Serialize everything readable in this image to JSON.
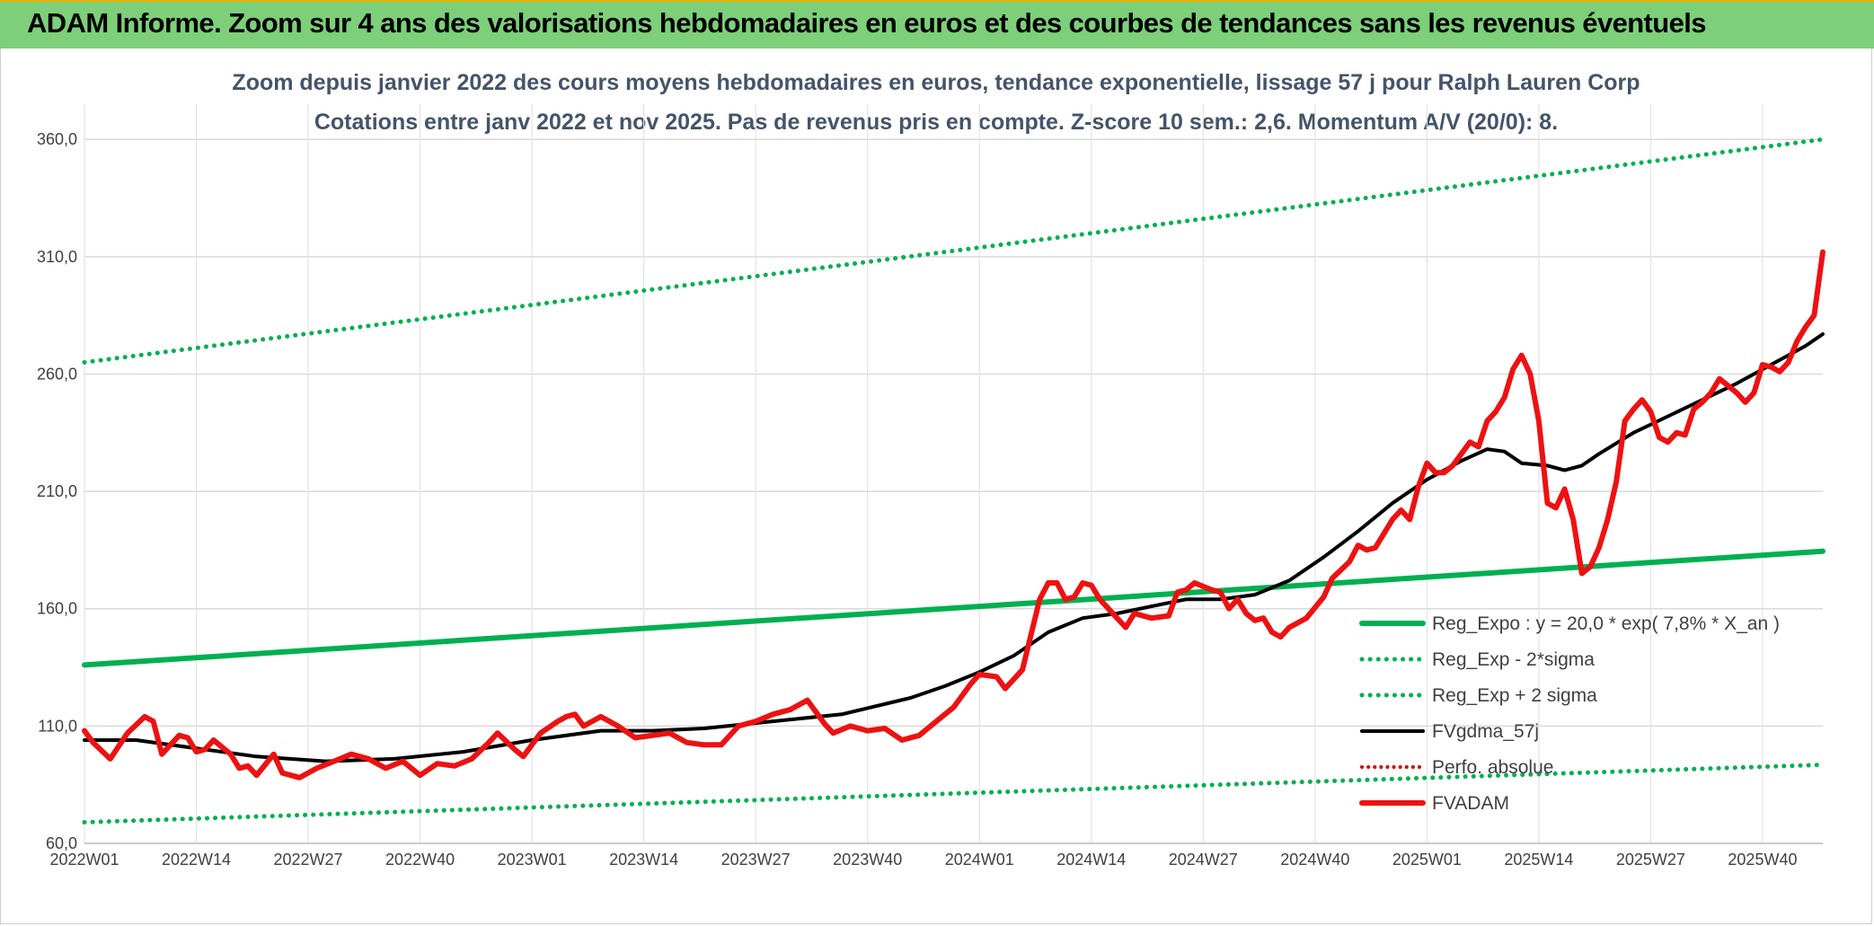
{
  "banner": {
    "title": "ADAM Informe. Zoom sur 4 ans des valorisations hebdomadaires en euros et des courbes de tendances sans les revenus éventuels"
  },
  "chart_data": {
    "type": "line",
    "title": "Zoom depuis janvier 2022 des cours moyens hebdomadaires en euros, tendance exponentielle, lissage 57 j pour Ralph Lauren Corp",
    "subtitle": "Cotations entre janv 2022 et nov 2025. Pas de revenus pris en compte. Z-score 10 sem.: 2,6. Momentum A/V (20/0): 8.",
    "xlabel": "",
    "ylabel": "",
    "ylim": [
      60,
      375
    ],
    "grid": true,
    "legend_position": "right",
    "x_count": 203,
    "y_tick_labels": [
      "60,0",
      "110,0",
      "160,0",
      "210,0",
      "260,0",
      "310,0",
      "360,0"
    ],
    "y_tick_values": [
      60,
      110,
      160,
      210,
      260,
      310,
      360
    ],
    "x_tick_labels": [
      "2022W01",
      "2022W14",
      "2022W27",
      "2022W40",
      "2023W01",
      "2023W14",
      "2023W27",
      "2023W40",
      "2024W01",
      "2024W14",
      "2024W27",
      "2024W40",
      "2025W01",
      "2025W14",
      "2025W27",
      "2025W40"
    ],
    "x_tick_indices": [
      0,
      13,
      26,
      39,
      52,
      65,
      78,
      91,
      104,
      117,
      130,
      143,
      156,
      169,
      182,
      195
    ],
    "colors": {
      "reg_expo": "#00b050",
      "sigma_bands": "#00b050",
      "smooth": "#000000",
      "perfo": "#e00000",
      "fvadam": "#ee1111"
    },
    "series": [
      {
        "name": "Reg_Expo : y = 20,0 * exp( 7,8% *  X_an )",
        "style": "solid-thick",
        "keypoints": [
          [
            0,
            136
          ],
          [
            202,
            184.5
          ]
        ]
      },
      {
        "name": "Reg_Exp - 2*sigma",
        "style": "dotted",
        "keypoints": [
          [
            0,
            69
          ],
          [
            202,
            93.5
          ]
        ]
      },
      {
        "name": "Reg_Exp + 2 sigma",
        "style": "dotted",
        "keypoints": [
          [
            0,
            265
          ],
          [
            202,
            360
          ]
        ]
      },
      {
        "name": "FVgdma_57j",
        "style": "solid",
        "keypoints": [
          [
            0,
            104
          ],
          [
            6,
            104
          ],
          [
            12,
            101
          ],
          [
            20,
            97
          ],
          [
            28,
            95
          ],
          [
            36,
            96
          ],
          [
            44,
            99
          ],
          [
            52,
            104
          ],
          [
            60,
            108
          ],
          [
            66,
            108
          ],
          [
            72,
            109
          ],
          [
            80,
            112
          ],
          [
            88,
            115
          ],
          [
            96,
            122
          ],
          [
            100,
            127
          ],
          [
            104,
            133
          ],
          [
            108,
            140
          ],
          [
            112,
            150
          ],
          [
            116,
            156
          ],
          [
            120,
            158
          ],
          [
            124,
            161
          ],
          [
            128,
            164
          ],
          [
            132,
            164
          ],
          [
            136,
            166
          ],
          [
            140,
            172
          ],
          [
            144,
            182
          ],
          [
            148,
            193
          ],
          [
            152,
            205
          ],
          [
            156,
            215
          ],
          [
            160,
            223
          ],
          [
            163,
            228
          ],
          [
            165,
            227
          ],
          [
            167,
            222
          ],
          [
            170,
            221
          ],
          [
            172,
            219
          ],
          [
            174,
            221
          ],
          [
            176,
            226
          ],
          [
            180,
            235
          ],
          [
            184,
            242
          ],
          [
            188,
            249
          ],
          [
            192,
            256
          ],
          [
            196,
            264
          ],
          [
            200,
            272
          ],
          [
            202,
            277
          ]
        ]
      },
      {
        "name": "Perfo. absolue",
        "style": "dotted",
        "keypoints": []
      },
      {
        "name": "FVADAM",
        "style": "solid-thick",
        "keypoints": [
          [
            0,
            108
          ],
          [
            1,
            103
          ],
          [
            3,
            96
          ],
          [
            5,
            107
          ],
          [
            7,
            114
          ],
          [
            8,
            112
          ],
          [
            9,
            98
          ],
          [
            11,
            106
          ],
          [
            12,
            105
          ],
          [
            13,
            99
          ],
          [
            14,
            100
          ],
          [
            15,
            104
          ],
          [
            17,
            98
          ],
          [
            18,
            92
          ],
          [
            19,
            93
          ],
          [
            20,
            89
          ],
          [
            22,
            98
          ],
          [
            23,
            90
          ],
          [
            25,
            88
          ],
          [
            27,
            92
          ],
          [
            29,
            95
          ],
          [
            31,
            98
          ],
          [
            33,
            96
          ],
          [
            35,
            92
          ],
          [
            37,
            95
          ],
          [
            39,
            89
          ],
          [
            41,
            94
          ],
          [
            43,
            93
          ],
          [
            45,
            96
          ],
          [
            47,
            103
          ],
          [
            48,
            107
          ],
          [
            50,
            100
          ],
          [
            51,
            97
          ],
          [
            53,
            107
          ],
          [
            55,
            112
          ],
          [
            56,
            114
          ],
          [
            57,
            115
          ],
          [
            58,
            110
          ],
          [
            60,
            114
          ],
          [
            62,
            110
          ],
          [
            64,
            105
          ],
          [
            66,
            106
          ],
          [
            68,
            107
          ],
          [
            70,
            103
          ],
          [
            72,
            102
          ],
          [
            74,
            102
          ],
          [
            76,
            110
          ],
          [
            78,
            112
          ],
          [
            80,
            115
          ],
          [
            82,
            117
          ],
          [
            84,
            121
          ],
          [
            86,
            111
          ],
          [
            87,
            107
          ],
          [
            89,
            110
          ],
          [
            91,
            108
          ],
          [
            93,
            109
          ],
          [
            95,
            104
          ],
          [
            97,
            106
          ],
          [
            99,
            112
          ],
          [
            101,
            118
          ],
          [
            103,
            128
          ],
          [
            104,
            132
          ],
          [
            106,
            131
          ],
          [
            107,
            126
          ],
          [
            109,
            134
          ],
          [
            111,
            164
          ],
          [
            112,
            171
          ],
          [
            113,
            171
          ],
          [
            114,
            164
          ],
          [
            115,
            165
          ],
          [
            116,
            171
          ],
          [
            117,
            170
          ],
          [
            118,
            164
          ],
          [
            120,
            156
          ],
          [
            121,
            152
          ],
          [
            122,
            158
          ],
          [
            123,
            157
          ],
          [
            124,
            156
          ],
          [
            126,
            157
          ],
          [
            127,
            167
          ],
          [
            128,
            168
          ],
          [
            129,
            171
          ],
          [
            131,
            168
          ],
          [
            132,
            167
          ],
          [
            133,
            160
          ],
          [
            134,
            164
          ],
          [
            135,
            158
          ],
          [
            136,
            155
          ],
          [
            137,
            156
          ],
          [
            138,
            150
          ],
          [
            139,
            148
          ],
          [
            140,
            152
          ],
          [
            142,
            156
          ],
          [
            144,
            165
          ],
          [
            145,
            173
          ],
          [
            147,
            180
          ],
          [
            148,
            187
          ],
          [
            149,
            185
          ],
          [
            150,
            186
          ],
          [
            152,
            198
          ],
          [
            153,
            202
          ],
          [
            154,
            198
          ],
          [
            155,
            212
          ],
          [
            156,
            222
          ],
          [
            157,
            218
          ],
          [
            158,
            218
          ],
          [
            159,
            221
          ],
          [
            160,
            226
          ],
          [
            161,
            231
          ],
          [
            162,
            229
          ],
          [
            163,
            240
          ],
          [
            164,
            244
          ],
          [
            165,
            250
          ],
          [
            166,
            262
          ],
          [
            167,
            268
          ],
          [
            168,
            260
          ],
          [
            169,
            240
          ],
          [
            170,
            205
          ],
          [
            171,
            203
          ],
          [
            172,
            211
          ],
          [
            173,
            198
          ],
          [
            174,
            175
          ],
          [
            175,
            178
          ],
          [
            176,
            186
          ],
          [
            177,
            198
          ],
          [
            178,
            214
          ],
          [
            179,
            240
          ],
          [
            180,
            245
          ],
          [
            181,
            249
          ],
          [
            182,
            244
          ],
          [
            183,
            233
          ],
          [
            184,
            231
          ],
          [
            185,
            235
          ],
          [
            186,
            234
          ],
          [
            187,
            245
          ],
          [
            188,
            248
          ],
          [
            189,
            252
          ],
          [
            190,
            258
          ],
          [
            191,
            255
          ],
          [
            192,
            252
          ],
          [
            193,
            248
          ],
          [
            194,
            252
          ],
          [
            195,
            264
          ],
          [
            196,
            263
          ],
          [
            197,
            261
          ],
          [
            198,
            265
          ],
          [
            199,
            274
          ],
          [
            200,
            280
          ],
          [
            201,
            285
          ],
          [
            202,
            312
          ]
        ]
      }
    ]
  }
}
